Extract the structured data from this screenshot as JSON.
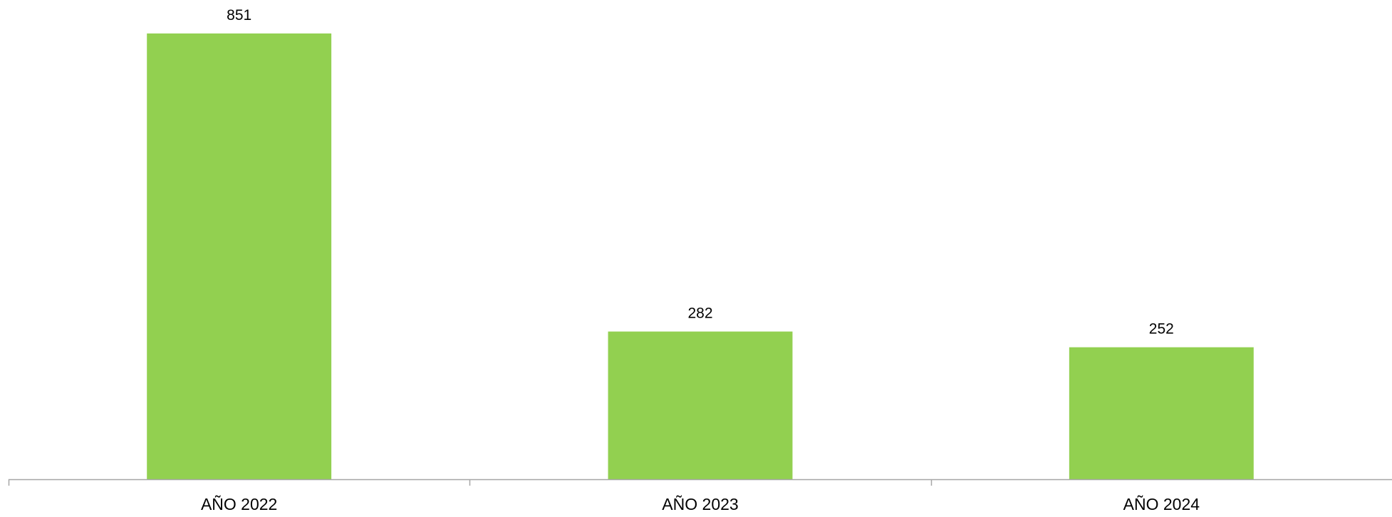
{
  "chart_data": {
    "type": "bar",
    "categories": [
      "AÑO 2022",
      "AÑO 2023",
      "AÑO 2024"
    ],
    "values": [
      851,
      282,
      252
    ],
    "data_labels": [
      "851",
      "282",
      "252"
    ],
    "ylim": [
      0,
      851
    ],
    "grid": false,
    "legend": "none",
    "bar_color": "#92d050",
    "axis_color": "#a6a6a6",
    "text_color": "#000000"
  }
}
